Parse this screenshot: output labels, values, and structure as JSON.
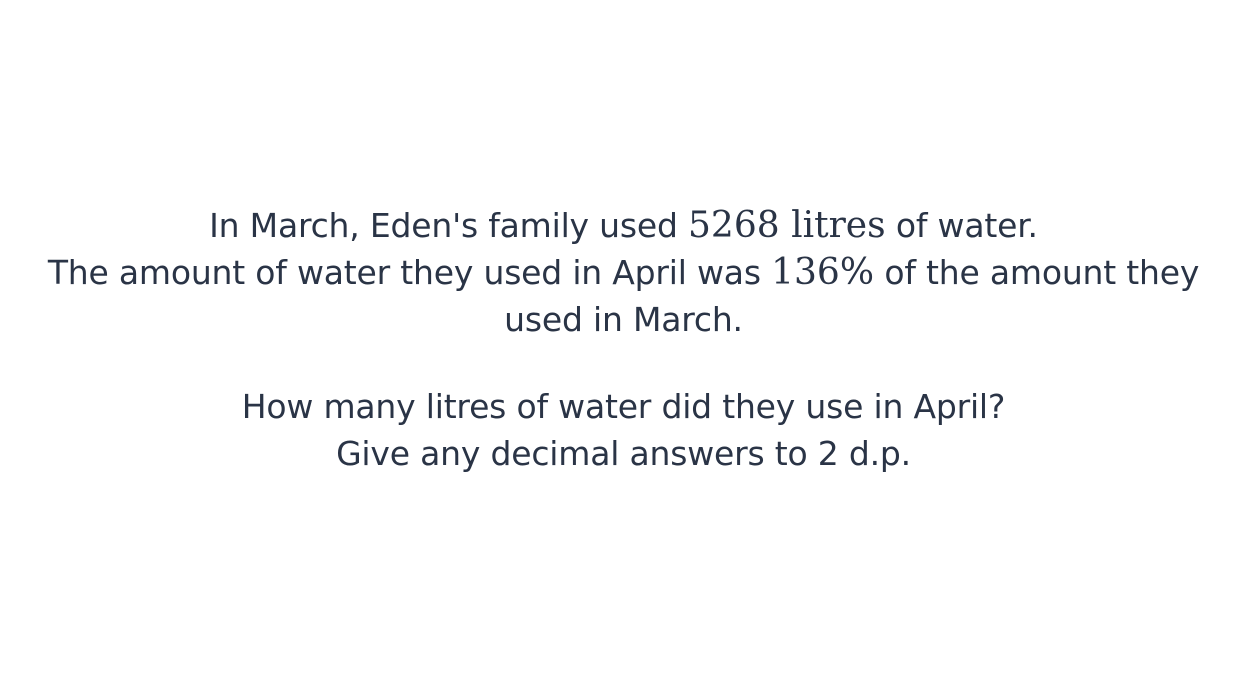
{
  "question": {
    "line1": {
      "before": "In March, Eden's family used ",
      "math": "5268 litres",
      "after": " of water."
    },
    "line2": {
      "before": "The amount of water they used in April was ",
      "math": "136%",
      "after": " of the amount they"
    },
    "line3": "used in March.",
    "prompt_line1": "How many litres of water did they use in April?",
    "prompt_line2": "Give any decimal answers to 2 d.p."
  }
}
